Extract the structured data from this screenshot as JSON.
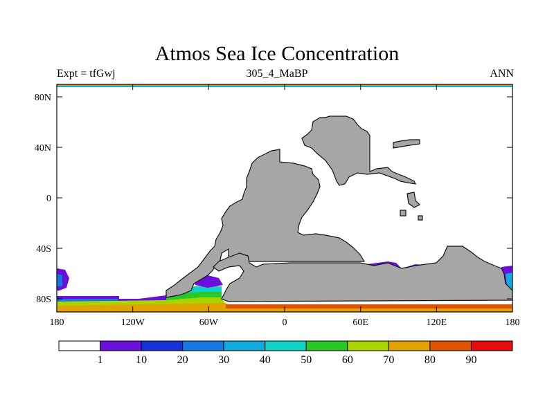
{
  "title": "Atmos Sea Ice Concentration",
  "subtitle_left": "Expt = tfGwj",
  "subtitle_center": "305_4_MaBP",
  "subtitle_right": "ANN",
  "y_ticks": [
    "80N",
    "40N",
    "0",
    "40S",
    "80S"
  ],
  "x_ticks": [
    "180",
    "120W",
    "60W",
    "0",
    "60E",
    "120E",
    "180"
  ],
  "colorbar": {
    "labels": [
      "1",
      "10",
      "20",
      "30",
      "40",
      "50",
      "60",
      "70",
      "80",
      "90"
    ],
    "colors": [
      "#ffffff",
      "#6a0fdc",
      "#1432d8",
      "#1478e0",
      "#10aadc",
      "#10d0c8",
      "#28c828",
      "#a8d400",
      "#e0a400",
      "#e05400",
      "#e40c0c"
    ]
  },
  "colors": {
    "land": "#a6a6a6",
    "land_outline": "#111111",
    "ocean": "#ffffff"
  }
}
